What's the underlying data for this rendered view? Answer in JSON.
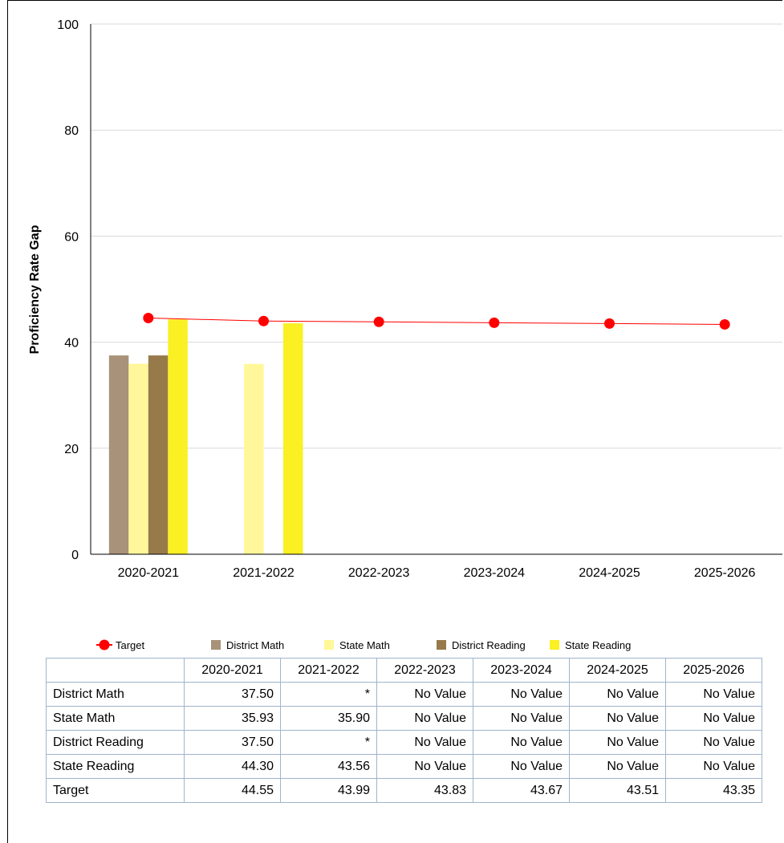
{
  "chart_data": {
    "type": "bar",
    "title": "",
    "xlabel": "",
    "ylabel": "Proficiency Rate Gap",
    "ylim": [
      0,
      100
    ],
    "yticks": [
      0,
      20,
      40,
      60,
      80,
      100
    ],
    "grid": true,
    "legend_position": "bottom",
    "categories": [
      "2020-2021",
      "2021-2022",
      "2022-2023",
      "2023-2024",
      "2024-2025",
      "2025-2026"
    ],
    "series": [
      {
        "name": "District Math",
        "type": "bar",
        "color": "#a89279",
        "values": [
          37.5,
          null,
          null,
          null,
          null,
          null
        ]
      },
      {
        "name": "State Math",
        "type": "bar",
        "color": "#fff799",
        "values": [
          35.93,
          35.9,
          null,
          null,
          null,
          null
        ]
      },
      {
        "name": "District Reading",
        "type": "bar",
        "color": "#967a4a",
        "values": [
          37.5,
          null,
          null,
          null,
          null,
          null
        ]
      },
      {
        "name": "State Reading",
        "type": "bar",
        "color": "#faf023",
        "values": [
          44.3,
          43.56,
          null,
          null,
          null,
          null
        ]
      },
      {
        "name": "Target",
        "type": "line",
        "color": "#ff0000",
        "values": [
          44.55,
          43.99,
          43.83,
          43.67,
          43.51,
          43.35
        ]
      }
    ],
    "legend": [
      "Target",
      "District Math",
      "State Math",
      "District Reading",
      "State Reading"
    ]
  },
  "table": {
    "headers": [
      "",
      "2020-2021",
      "2021-2022",
      "2022-2023",
      "2023-2024",
      "2024-2025",
      "2025-2026"
    ],
    "rows": [
      {
        "label": "District Math",
        "cells": [
          "37.50",
          "*",
          "No Value",
          "No Value",
          "No Value",
          "No Value"
        ]
      },
      {
        "label": "State Math",
        "cells": [
          "35.93",
          "35.90",
          "No Value",
          "No Value",
          "No Value",
          "No Value"
        ]
      },
      {
        "label": "District Reading",
        "cells": [
          "37.50",
          "*",
          "No Value",
          "No Value",
          "No Value",
          "No Value"
        ]
      },
      {
        "label": "State Reading",
        "cells": [
          "44.30",
          "43.56",
          "No Value",
          "No Value",
          "No Value",
          "No Value"
        ]
      },
      {
        "label": "Target",
        "cells": [
          "44.55",
          "43.99",
          "43.83",
          "43.67",
          "43.51",
          "43.35"
        ]
      }
    ]
  }
}
